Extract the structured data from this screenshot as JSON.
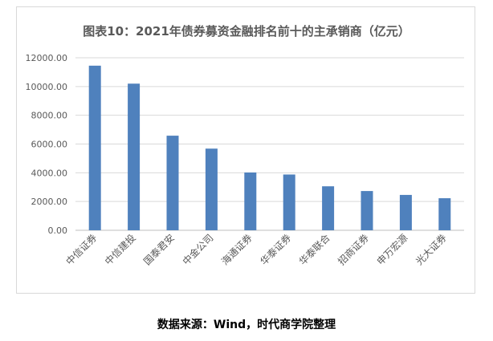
{
  "chart_data": {
    "type": "bar",
    "title": "图表10：2021年债券募资金融排名前十的主承销商（亿元）",
    "categories": [
      "中信证券",
      "中信建投",
      "国泰君安",
      "中金公司",
      "海通证券",
      "华泰证券",
      "华泰联合",
      "招商证券",
      "申万宏源",
      "光大证券"
    ],
    "values": [
      11450,
      10200,
      6580,
      5680,
      4020,
      3880,
      3060,
      2730,
      2460,
      2230
    ],
    "y_ticks": [
      "0.00",
      "2000.00",
      "4000.00",
      "6000.00",
      "8000.00",
      "10000.00",
      "12000.00"
    ],
    "ylim": [
      0,
      12000
    ],
    "xlabel": "",
    "ylabel": "",
    "grid": true,
    "bar_color": "#4f81bd"
  },
  "footer": {
    "source": "数据来源：Wind，时代商学院整理"
  }
}
